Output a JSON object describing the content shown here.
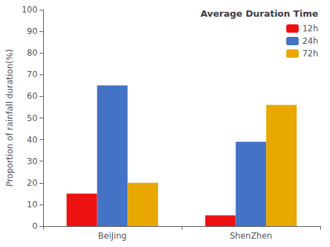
{
  "chart_data": {
    "type": "bar",
    "ylabel": "Proportion of rainfall duration(%)",
    "legend_title": "Average Duration Time",
    "categories": [
      "BeiJing",
      "ShenZhen"
    ],
    "series": [
      {
        "name": "12h",
        "color": "#EE1111",
        "values": [
          15,
          5
        ]
      },
      {
        "name": "24h",
        "color": "#4472C4",
        "values": [
          65,
          39
        ]
      },
      {
        "name": "72h",
        "color": "#E8A800",
        "values": [
          20,
          56
        ]
      }
    ],
    "ylim": [
      0,
      100
    ],
    "yticks": [
      0,
      10,
      20,
      30,
      40,
      50,
      60,
      70,
      80,
      90,
      100
    ],
    "grid": false,
    "legend": "upper right"
  }
}
